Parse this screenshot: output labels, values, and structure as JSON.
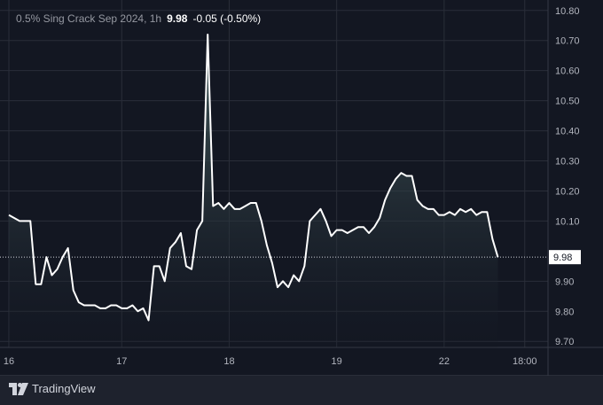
{
  "legend": {
    "symbol": "0.5% Sing Crack Sep 2024, 1h",
    "last": "9.98",
    "change": "-0.05 (-0.50%)"
  },
  "brand": {
    "name": "TradingView",
    "logo_icon": "tradingview-logo-icon"
  },
  "colors": {
    "background": "#131722",
    "line": "#ffffff",
    "grid": "#2a2e39",
    "axis_text": "#b2b5be",
    "area_top": "#4a6464",
    "price_label_bg": "#ffffff"
  },
  "chart_data": {
    "type": "area",
    "title": "",
    "xlabel": "",
    "ylabel": "",
    "ylim": [
      9.68,
      10.82
    ],
    "y_ticks": [
      "10.80",
      "10.70",
      "10.60",
      "10.50",
      "10.40",
      "10.30",
      "10.20",
      "10.10",
      "9.90",
      "9.80",
      "9.70"
    ],
    "x_ticks": [
      {
        "label": "16",
        "i": 0
      },
      {
        "label": "17",
        "i": 21
      },
      {
        "label": "18",
        "i": 41
      },
      {
        "label": "19",
        "i": 61
      },
      {
        "label": "22",
        "i": 81
      },
      {
        "label": "18:00",
        "i": 96
      }
    ],
    "current_price": "9.98",
    "grid": true,
    "series": [
      {
        "values": [
          10.12,
          10.11,
          10.1,
          10.1,
          10.1,
          9.89,
          9.89,
          9.98,
          9.92,
          9.94,
          9.98,
          10.01,
          9.87,
          9.83,
          9.82,
          9.82,
          9.82,
          9.81,
          9.81,
          9.82,
          9.82,
          9.81,
          9.81,
          9.82,
          9.8,
          9.81,
          9.77,
          9.95,
          9.95,
          9.9,
          10.01,
          10.03,
          10.06,
          9.95,
          9.94,
          10.07,
          10.1,
          10.72,
          10.15,
          10.16,
          10.14,
          10.16,
          10.14,
          10.14,
          10.15,
          10.16,
          10.16,
          10.1,
          10.02,
          9.96,
          9.88,
          9.9,
          9.88,
          9.92,
          9.9,
          9.95,
          10.1,
          10.12,
          10.14,
          10.1,
          10.05,
          10.07,
          10.07,
          10.06,
          10.07,
          10.08,
          10.08,
          10.06,
          10.08,
          10.11,
          10.17,
          10.21,
          10.24,
          10.26,
          10.25,
          10.25,
          10.17,
          10.15,
          10.14,
          10.14,
          10.12,
          10.12,
          10.13,
          10.12,
          10.14,
          10.13,
          10.14,
          10.12,
          10.13,
          10.13,
          10.04,
          9.98
        ]
      }
    ]
  }
}
